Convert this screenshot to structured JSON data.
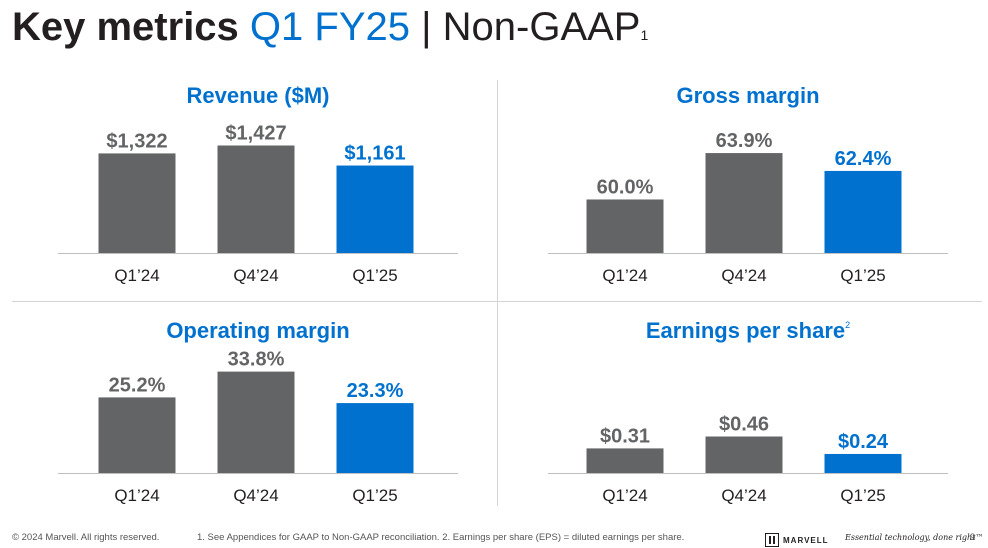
{
  "slide": {
    "title_bold": "Key metrics",
    "title_accent": "Q1 FY25",
    "title_rest": "| Non-GAAP",
    "title_sup": "1"
  },
  "chart_data": [
    {
      "type": "bar",
      "title": "Revenue ($M)",
      "categories": [
        "Q1’24",
        "Q4’24",
        "Q1’25"
      ],
      "values": [
        1322,
        1427,
        1161
      ],
      "labels": [
        "$1,322",
        "$1,427",
        "$1,161"
      ],
      "ylim": [
        0,
        1500
      ],
      "colors": [
        "#636466",
        "#636466",
        "#0071ce"
      ],
      "label_colors": [
        "#636466",
        "#636466",
        "#0071ce"
      ]
    },
    {
      "type": "bar",
      "title": "Gross margin",
      "categories": [
        "Q1’24",
        "Q4’24",
        "Q1’25"
      ],
      "values": [
        60.0,
        63.9,
        62.4
      ],
      "labels": [
        "60.0%",
        "63.9%",
        "62.4%"
      ],
      "ylim": [
        55.5,
        65
      ],
      "colors": [
        "#636466",
        "#636466",
        "#0071ce"
      ],
      "label_colors": [
        "#636466",
        "#636466",
        "#0071ce"
      ]
    },
    {
      "type": "bar",
      "title": "Operating margin",
      "categories": [
        "Q1’24",
        "Q4’24",
        "Q1’25"
      ],
      "values": [
        25.2,
        33.8,
        23.3
      ],
      "labels": [
        "25.2%",
        "33.8%",
        "23.3%"
      ],
      "ylim": [
        0,
        36
      ],
      "colors": [
        "#636466",
        "#636466",
        "#0071ce"
      ],
      "label_colors": [
        "#636466",
        "#636466",
        "#0071ce"
      ]
    },
    {
      "type": "bar",
      "title": "Earnings per share",
      "title_sup": "2",
      "categories": [
        "Q1’24",
        "Q4’24",
        "Q1’25"
      ],
      "values": [
        0.31,
        0.46,
        0.24
      ],
      "labels": [
        "$0.31",
        "$0.46",
        "$0.24"
      ],
      "ylim": [
        0,
        0.92
      ],
      "colors": [
        "#636466",
        "#636466",
        "#0071ce"
      ],
      "label_colors": [
        "#636466",
        "#636466",
        "#0071ce"
      ]
    }
  ],
  "footer": {
    "copyright": "© 2024 Marvell. All rights reserved.",
    "notes": "1. See Appendices for GAAP to Non-GAAP reconciliation. 2. Earnings per share (EPS) = diluted earnings per share.",
    "logo_text": "MARVELL",
    "tagline": "Essential technology, done right™",
    "page": "9"
  }
}
